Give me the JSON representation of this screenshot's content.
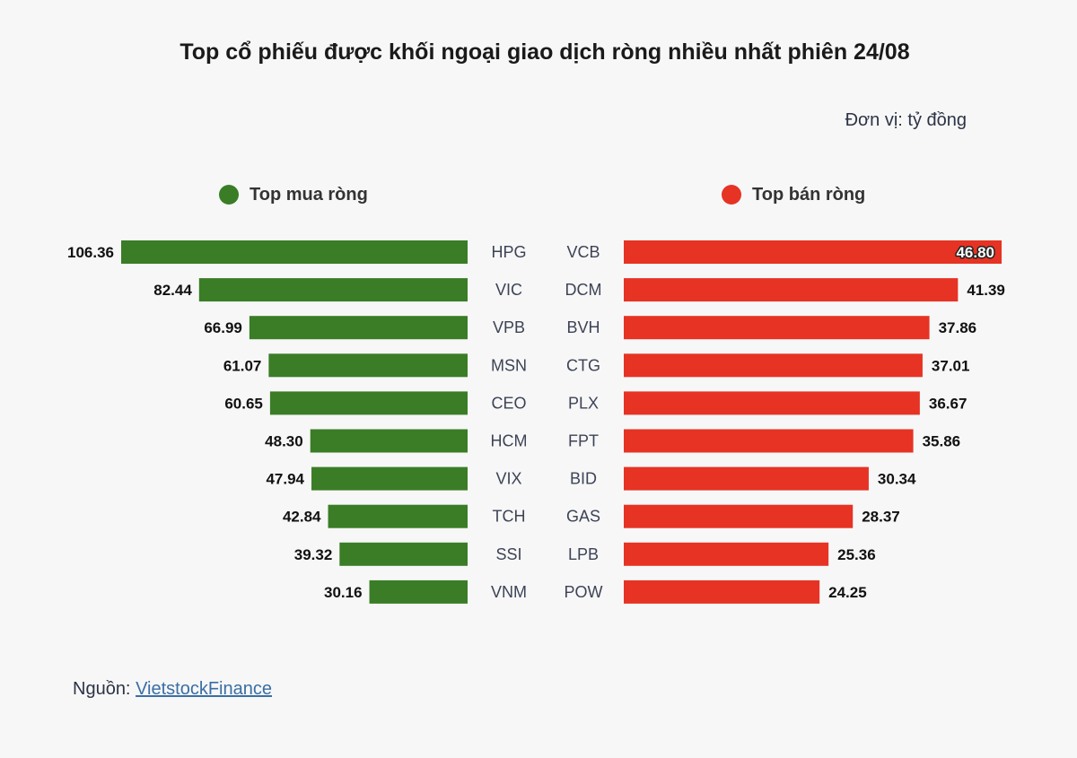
{
  "title": "Top cổ phiếu được khối ngoại giao dịch ròng nhiều nhất phiên 24/08",
  "unit": "Đơn vị: tỷ đồng",
  "source_label": "Nguồn:",
  "source_link": "VietstockFinance",
  "colors": {
    "buy": "#3a7d26",
    "sell": "#e63324"
  },
  "chart_data": [
    {
      "type": "bar",
      "orientation": "horizontal",
      "direction": "leftward",
      "legend": "Top mua ròng",
      "categories": [
        "HPG",
        "VIC",
        "VPB",
        "MSN",
        "CEO",
        "HCM",
        "VIX",
        "TCH",
        "SSI",
        "VNM"
      ],
      "values": [
        106.36,
        82.44,
        66.99,
        61.07,
        60.65,
        48.3,
        47.94,
        42.84,
        39.32,
        30.16
      ],
      "value_labels": [
        "106.36",
        "82.44",
        "66.99",
        "61.07",
        "60.65",
        "48.30",
        "47.94",
        "42.84",
        "39.32",
        "30.16"
      ],
      "grid": false
    },
    {
      "type": "bar",
      "orientation": "horizontal",
      "direction": "rightward",
      "legend": "Top bán ròng",
      "categories": [
        "VCB",
        "DCM",
        "BVH",
        "CTG",
        "PLX",
        "FPT",
        "BID",
        "GAS",
        "LPB",
        "POW"
      ],
      "values": [
        46.8,
        41.39,
        37.86,
        37.01,
        36.67,
        35.86,
        30.34,
        28.37,
        25.36,
        24.25
      ],
      "value_labels": [
        "46.80",
        "41.39",
        "37.86",
        "37.01",
        "36.67",
        "35.86",
        "30.34",
        "28.37",
        "25.36",
        "24.25"
      ],
      "grid": false
    }
  ]
}
